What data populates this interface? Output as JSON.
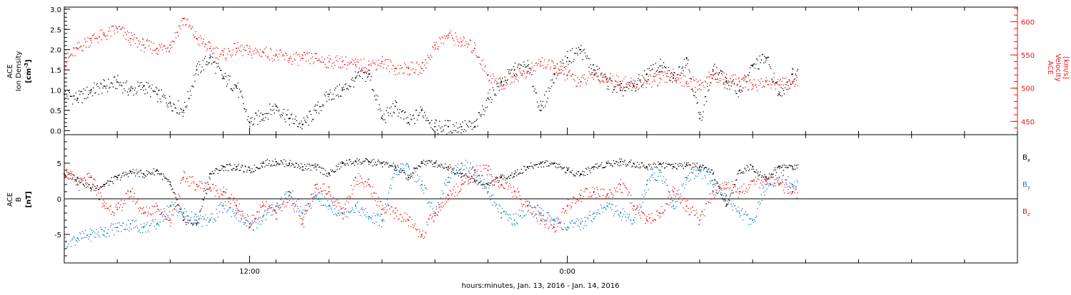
{
  "colors": {
    "axis": "#000000",
    "density": "#000000",
    "velocity": "#ee1111",
    "bx": "#000000",
    "by": "#1177cc",
    "bz": "#ee1111"
  },
  "time_axis": {
    "label": "hours:minutes, Jan. 13, 2016 - Jan. 14, 2016",
    "range_hours": [
      5.0,
      41.0
    ],
    "major_ticks": [
      {
        "hour": 12,
        "label": "12:00"
      },
      {
        "hour": 24,
        "label": "0:00"
      }
    ],
    "minor_every_hours": 2,
    "data_end_hour": 32.7
  },
  "chart_data": [
    {
      "type": "scatter",
      "panel": "top",
      "ylabel_lines": [
        "ACE",
        "Ion Density"
      ],
      "yunit_base": "[cm",
      "yunit_sup": "-3",
      "yunit_end": "]",
      "ylim": [
        -0.1,
        3.05
      ],
      "yticks": [
        "0.0",
        "0.5",
        "1.0",
        "1.5",
        "2.0",
        "2.5",
        "3.0"
      ],
      "right_axis": {
        "ylabel_lines": [
          "ACE",
          "Velocity",
          "[km/s]"
        ],
        "ylim": [
          430,
          622
        ],
        "yticks": [
          "450",
          "500",
          "550",
          "600"
        ]
      },
      "series": [
        {
          "key": "density",
          "x": [
            5.0,
            5.5,
            6.0,
            6.5,
            7.0,
            7.5,
            8.0,
            8.5,
            9.0,
            9.5,
            10.0,
            10.5,
            11.0,
            11.5,
            12.0,
            12.5,
            13.0,
            13.5,
            14.0,
            14.5,
            15.0,
            15.5,
            16.0,
            16.5,
            17.0,
            17.5,
            18.0,
            18.5,
            19.0,
            19.5,
            20.0,
            20.5,
            21.0,
            21.5,
            22.0,
            22.5,
            23.0,
            23.5,
            24.0,
            24.5,
            25.0,
            25.5,
            26.0,
            26.5,
            27.0,
            27.5,
            28.0,
            28.5,
            29.0,
            29.5,
            30.0,
            30.5,
            31.0,
            31.5,
            32.0,
            32.5
          ],
          "values": [
            0.9,
            0.8,
            1.0,
            1.1,
            1.2,
            1.0,
            1.1,
            0.9,
            0.7,
            0.5,
            1.5,
            1.8,
            1.3,
            1.1,
            0.2,
            0.4,
            0.6,
            0.3,
            0.15,
            0.5,
            0.9,
            1.0,
            1.3,
            1.4,
            0.3,
            0.6,
            0.2,
            0.5,
            0.1,
            0.1,
            0.1,
            0.1,
            0.8,
            1.2,
            1.5,
            1.6,
            0.5,
            1.4,
            1.8,
            2.0,
            1.5,
            1.2,
            1.0,
            1.1,
            1.4,
            1.6,
            1.3,
            1.8,
            0.3,
            1.5,
            1.2,
            1.0,
            1.6,
            1.8,
            0.9,
            1.4
          ]
        },
        {
          "key": "velocity",
          "axis": "right",
          "x": [
            5.0,
            5.5,
            6.0,
            6.5,
            7.0,
            7.5,
            8.0,
            8.5,
            9.0,
            9.5,
            10.0,
            10.5,
            11.0,
            11.5,
            12.0,
            12.5,
            13.0,
            13.5,
            14.0,
            14.5,
            15.0,
            15.5,
            16.0,
            16.5,
            17.0,
            17.5,
            18.0,
            18.5,
            19.0,
            19.5,
            20.0,
            20.5,
            21.0,
            21.5,
            22.0,
            22.5,
            23.0,
            23.5,
            24.0,
            24.5,
            25.0,
            25.5,
            26.0,
            26.5,
            27.0,
            27.5,
            28.0,
            28.5,
            29.0,
            29.5,
            30.0,
            30.5,
            31.0,
            31.5,
            32.0,
            32.5
          ],
          "values": [
            540,
            560,
            575,
            580,
            590,
            575,
            565,
            560,
            565,
            605,
            575,
            560,
            550,
            560,
            555,
            555,
            550,
            545,
            545,
            545,
            540,
            540,
            535,
            535,
            540,
            530,
            530,
            530,
            565,
            580,
            570,
            560,
            520,
            505,
            520,
            525,
            540,
            530,
            520,
            510,
            520,
            515,
            510,
            505,
            510,
            515,
            520,
            510,
            505,
            520,
            515,
            510,
            505,
            510,
            505,
            510
          ]
        }
      ]
    },
    {
      "type": "scatter",
      "panel": "bottom",
      "ylabel_lines": [
        "ACE",
        "B"
      ],
      "yunit": "[nT]",
      "ylim": [
        -9.0,
        9.0
      ],
      "yticks": [
        "-5",
        "0",
        "5"
      ],
      "zero_line": true,
      "legend": [
        {
          "key": "bx",
          "base": "B",
          "sub": "x"
        },
        {
          "key": "by",
          "base": "B",
          "sub": "y"
        },
        {
          "key": "bz",
          "base": "B",
          "sub": "z"
        }
      ],
      "series": [
        {
          "key": "bx",
          "x": [
            5.0,
            5.5,
            6.0,
            6.5,
            7.0,
            7.5,
            8.0,
            8.5,
            9.0,
            9.5,
            10.0,
            10.5,
            11.0,
            11.5,
            12.0,
            12.5,
            13.0,
            13.5,
            14.0,
            14.5,
            15.0,
            15.5,
            16.0,
            16.5,
            17.0,
            17.5,
            18.0,
            18.5,
            19.0,
            19.5,
            20.0,
            20.5,
            21.0,
            21.5,
            22.0,
            22.5,
            23.0,
            23.5,
            24.0,
            24.5,
            25.0,
            25.5,
            26.0,
            26.5,
            27.0,
            27.5,
            28.0,
            28.5,
            29.0,
            29.5,
            30.0,
            30.5,
            31.0,
            31.5,
            32.0,
            32.5
          ],
          "values": [
            3.5,
            3.0,
            1.5,
            2.0,
            3.0,
            3.8,
            3.5,
            4.0,
            2.0,
            -3.0,
            -3.5,
            3.5,
            4.5,
            4.5,
            4.0,
            5.0,
            5.2,
            5.0,
            4.5,
            4.5,
            3.5,
            5.0,
            5.3,
            5.2,
            5.0,
            4.5,
            3.0,
            5.2,
            5.0,
            4.5,
            3.5,
            2.5,
            2.0,
            3.0,
            3.5,
            4.5,
            5.0,
            5.0,
            4.0,
            3.5,
            4.5,
            5.0,
            5.2,
            5.0,
            4.5,
            5.0,
            4.5,
            4.8,
            4.5,
            3.5,
            -1.0,
            4.0,
            4.5,
            3.0,
            4.5,
            4.5
          ]
        },
        {
          "key": "by",
          "x": [
            5.0,
            5.5,
            6.0,
            6.5,
            7.0,
            7.5,
            8.0,
            8.5,
            9.0,
            9.5,
            10.0,
            10.5,
            11.0,
            11.5,
            12.0,
            12.5,
            13.0,
            13.5,
            14.0,
            14.5,
            15.0,
            15.5,
            16.0,
            16.5,
            17.0,
            17.5,
            18.0,
            18.5,
            19.0,
            19.5,
            20.0,
            20.5,
            21.0,
            21.5,
            22.0,
            22.5,
            23.0,
            23.5,
            24.0,
            24.5,
            25.0,
            25.5,
            26.0,
            26.5,
            27.0,
            27.5,
            28.0,
            28.5,
            29.0,
            29.5,
            30.0,
            30.5,
            31.0,
            31.5,
            32.0,
            32.5
          ],
          "values": [
            -6.0,
            -5.5,
            -5.0,
            -4.5,
            -4.0,
            -3.5,
            -4.0,
            -3.5,
            -1.0,
            -2.0,
            -3.0,
            -3.0,
            -1.0,
            -2.0,
            -4.0,
            -2.5,
            -1.0,
            1.0,
            -2.0,
            0.5,
            -1.0,
            -2.0,
            -1.0,
            -2.5,
            -3.0,
            4.0,
            4.5,
            2.0,
            -2.0,
            3.0,
            5.0,
            4.0,
            1.0,
            -2.0,
            -3.0,
            -1.0,
            -2.0,
            -3.0,
            -4.0,
            -3.5,
            -2.0,
            -1.0,
            -2.0,
            -3.0,
            2.0,
            4.0,
            -1.0,
            3.0,
            4.0,
            2.0,
            0.5,
            -2.0,
            -3.0,
            2.0,
            3.0,
            2.0
          ]
        },
        {
          "key": "bz",
          "x": [
            5.0,
            5.5,
            6.0,
            6.5,
            7.0,
            7.5,
            8.0,
            8.5,
            9.0,
            9.5,
            10.0,
            10.5,
            11.0,
            11.5,
            12.0,
            12.5,
            13.0,
            13.5,
            14.0,
            14.5,
            15.0,
            15.5,
            16.0,
            16.5,
            17.0,
            17.5,
            18.0,
            18.5,
            19.0,
            19.5,
            20.0,
            20.5,
            21.0,
            21.5,
            22.0,
            22.5,
            23.0,
            23.5,
            24.0,
            24.5,
            25.0,
            25.5,
            26.0,
            26.5,
            27.0,
            27.5,
            28.0,
            28.5,
            29.0,
            29.5,
            30.0,
            30.5,
            31.0,
            31.5,
            32.0,
            32.5
          ],
          "values": [
            4.0,
            2.0,
            3.0,
            -1.0,
            -1.5,
            1.0,
            -2.0,
            -1.0,
            -3.0,
            3.0,
            2.0,
            1.5,
            1.0,
            -1.0,
            -3.5,
            -1.0,
            -2.0,
            0.5,
            -3.5,
            2.0,
            1.0,
            -2.0,
            3.0,
            2.0,
            -1.5,
            -2.0,
            -3.0,
            -5.0,
            -2.0,
            0.5,
            2.0,
            4.0,
            4.0,
            2.0,
            1.0,
            -1.0,
            -3.0,
            -4.0,
            -1.0,
            0.5,
            1.0,
            0.5,
            2.0,
            -1.0,
            -3.0,
            -2.0,
            1.0,
            -1.0,
            -3.0,
            1.0,
            2.0,
            1.0,
            2.5,
            2.5,
            2.0,
            1.0
          ]
        }
      ]
    }
  ]
}
